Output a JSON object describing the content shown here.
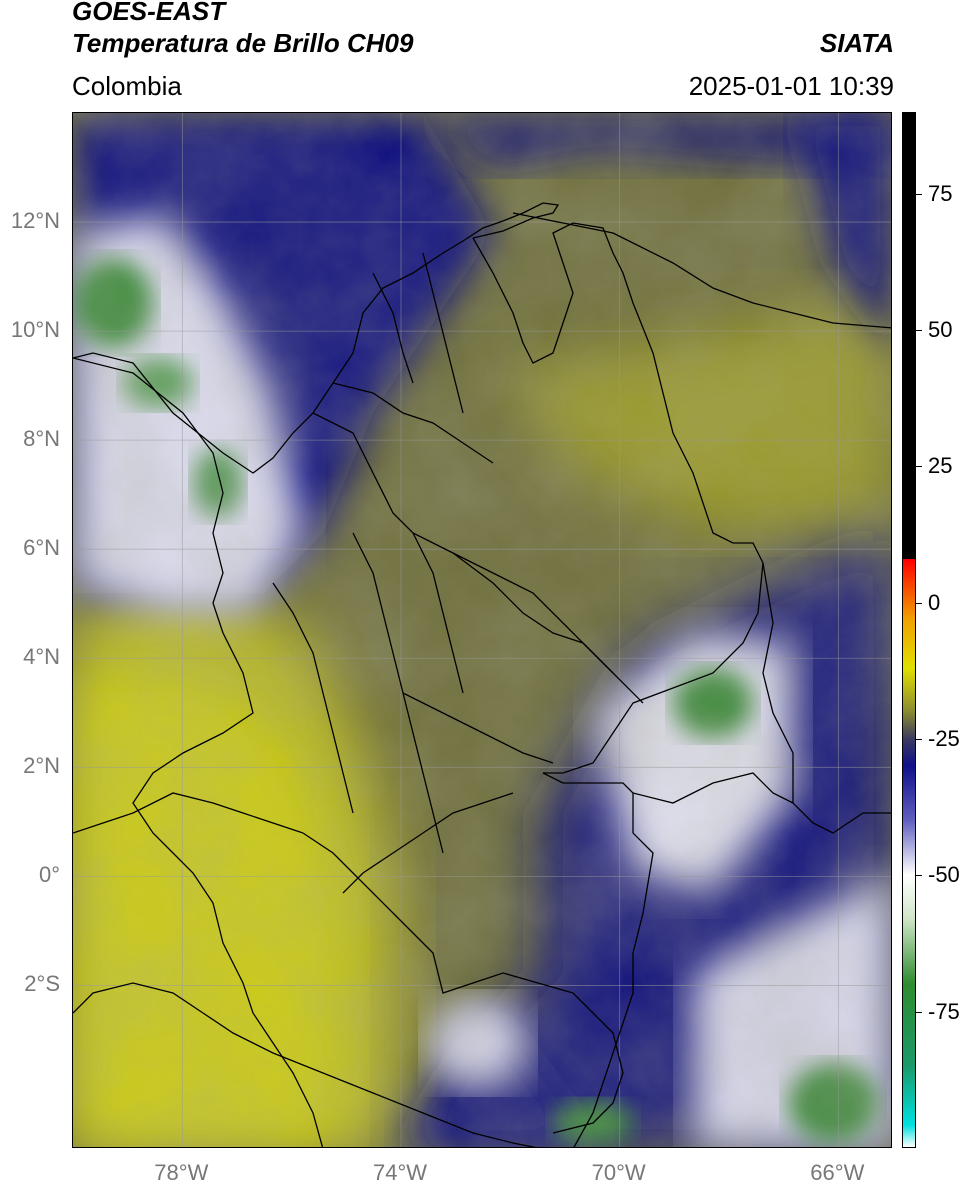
{
  "header": {
    "title_line1": "GOES-EAST",
    "title_line2": "Temperatura de Brillo CH09",
    "organization": "SIATA",
    "region": "Colombia",
    "datetime": "2025-01-01 10:39"
  },
  "map": {
    "lon_range": [
      -80,
      -65
    ],
    "lat_range": [
      -5,
      14
    ],
    "lat_labels": [
      {
        "value": 12,
        "text": "12°N"
      },
      {
        "value": 10,
        "text": "10°N"
      },
      {
        "value": 8,
        "text": "8°N"
      },
      {
        "value": 6,
        "text": "6°N"
      },
      {
        "value": 4,
        "text": "4°N"
      },
      {
        "value": 2,
        "text": "2°N"
      },
      {
        "value": 0,
        "text": "0°"
      },
      {
        "value": -2,
        "text": "2°S"
      }
    ],
    "lon_labels": [
      {
        "value": -78,
        "text": "78°W"
      },
      {
        "value": -74,
        "text": "74°W"
      },
      {
        "value": -70,
        "text": "70°W"
      },
      {
        "value": -66,
        "text": "66°W"
      }
    ]
  },
  "colorbar": {
    "range": [
      -100,
      90
    ],
    "ticks": [
      {
        "value": 75,
        "text": "75"
      },
      {
        "value": 50,
        "text": "50"
      },
      {
        "value": 25,
        "text": "25"
      },
      {
        "value": 0,
        "text": "0"
      },
      {
        "value": -25,
        "text": "-25"
      },
      {
        "value": -50,
        "text": "-50"
      },
      {
        "value": -75,
        "text": "-75"
      }
    ],
    "stops": [
      {
        "value": -100,
        "color": "#ffffff"
      },
      {
        "value": -96,
        "color": "#00e0e0"
      },
      {
        "value": -85,
        "color": "#1a9a6a"
      },
      {
        "value": -70,
        "color": "#2e8c2e"
      },
      {
        "value": -58,
        "color": "#d0e6c8"
      },
      {
        "value": -50,
        "color": "#ffffff"
      },
      {
        "value": -40,
        "color": "#6060c0"
      },
      {
        "value": -30,
        "color": "#10108c"
      },
      {
        "value": -25,
        "color": "#3a3a60"
      },
      {
        "value": -20,
        "color": "#8a8a30"
      },
      {
        "value": -12,
        "color": "#e0e000"
      },
      {
        "value": -3,
        "color": "#f0a000"
      },
      {
        "value": 8,
        "color": "#ff0000"
      },
      {
        "value": 8.1,
        "color": "#000000"
      },
      {
        "value": 90,
        "color": "#000000"
      }
    ]
  }
}
